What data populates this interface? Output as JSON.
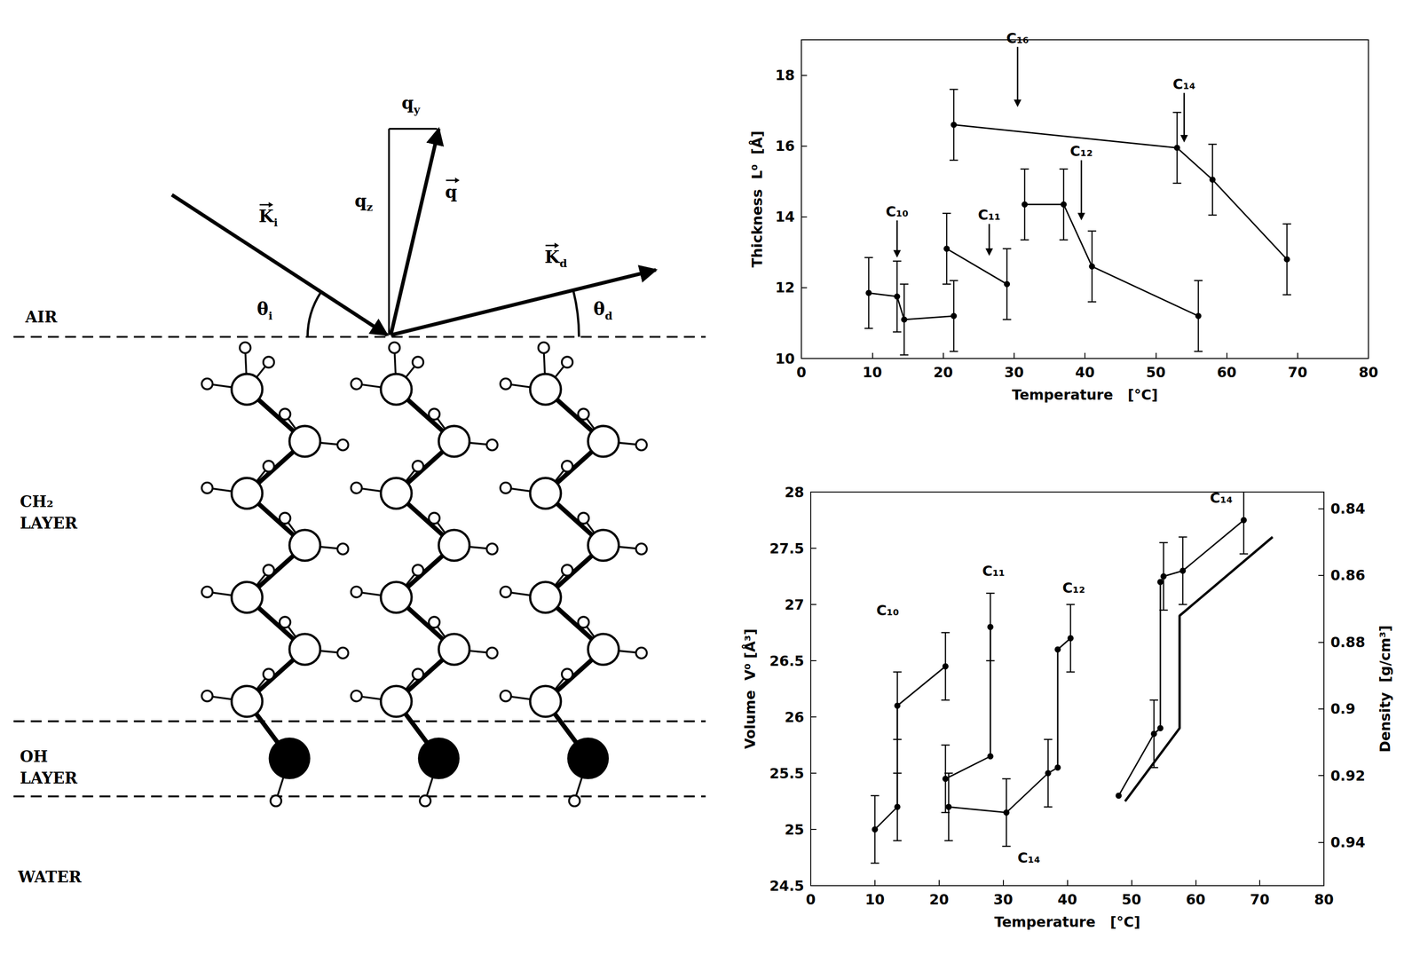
{
  "diagram": {
    "regions": {
      "air": "AIR",
      "ch2": "CH₂ LAYER",
      "oh": "OH LAYER",
      "water": "WATER"
    },
    "vectors": {
      "k_i": {
        "base": "K",
        "sub": "i"
      },
      "k_d": {
        "base": "K",
        "sub": "d"
      },
      "q": {
        "base": "q"
      },
      "q_z": {
        "base": "q",
        "sub": "z"
      },
      "q_y": {
        "base": "q",
        "sub": "y"
      }
    },
    "angles": {
      "theta_i": {
        "base": "θ",
        "sub": "i"
      },
      "theta_d": {
        "base": "θ",
        "sub": "d"
      }
    }
  },
  "chart_data": [
    {
      "type": "line",
      "x_label": "Temperature   [°C]",
      "y_label": "Thickness  L⁰  [Å]",
      "xlim": [
        0,
        80
      ],
      "xticks": [
        0,
        10,
        20,
        30,
        40,
        50,
        60,
        70,
        80
      ],
      "ylim": [
        10,
        19
      ],
      "yticks": [
        10,
        12,
        14,
        16,
        18
      ],
      "grid": false,
      "color": "#000000",
      "marker": "circle",
      "series": [
        {
          "x": [
            21.5,
            53,
            58,
            68.5
          ],
          "values": [
            16.6,
            15.95,
            15.05,
            12.8
          ],
          "errors": [
            1.0,
            1.0,
            1.0,
            1.0
          ]
        },
        {
          "x": [
            20.5,
            29
          ],
          "values": [
            13.1,
            12.1
          ],
          "errors": [
            1.0,
            1.0
          ]
        },
        {
          "x": [
            31.5,
            37,
            41,
            56
          ],
          "values": [
            14.35,
            14.35,
            12.6,
            11.2
          ],
          "errors": [
            1.0,
            1.0,
            1.0,
            1.0
          ]
        },
        {
          "x": [
            9.5,
            13.5,
            14.5,
            21.5
          ],
          "values": [
            11.85,
            11.75,
            11.1,
            11.2
          ],
          "errors": [
            1.0,
            1.0,
            1.0,
            1.0
          ]
        }
      ],
      "annotations": [
        {
          "text": "C₁₀",
          "x": 13.5,
          "y": 13.9,
          "y_end": 12.85
        },
        {
          "text": "C₁₁",
          "x": 26.5,
          "y": 13.8,
          "y_end": 12.9
        },
        {
          "text": "C₁₂",
          "x": 39.5,
          "y": 15.6,
          "y_end": 13.9
        },
        {
          "text": "C₁₄",
          "x": 54,
          "y": 17.5,
          "y_end": 16.1
        },
        {
          "text": "C₁₆",
          "x": 30.5,
          "y": 18.8,
          "y_end": 17.1
        }
      ]
    },
    {
      "type": "line",
      "x_label": "Temperature   [°C]",
      "y_label": "Volume  V⁰ [Å³]",
      "y2_label": "Density  [g/cm³]",
      "xlim": [
        0,
        80
      ],
      "xticks": [
        0,
        10,
        20,
        30,
        40,
        50,
        60,
        70,
        80
      ],
      "ylim": [
        24.5,
        28
      ],
      "yticks": [
        24.5,
        25,
        25.5,
        26,
        26.5,
        27,
        27.5,
        28
      ],
      "y2lim": [
        0.953,
        0.835
      ],
      "y2ticks": [
        0.84,
        0.86,
        0.88,
        0.9,
        0.92,
        0.94
      ],
      "grid": false,
      "color": "#000000",
      "marker": "circle",
      "series": [
        {
          "x": [
            10,
            13.5,
            13.5,
            21
          ],
          "values": [
            25.0,
            25.2,
            26.1,
            26.45
          ],
          "errors": [
            0.3,
            0.3,
            0.3,
            0.3
          ]
        },
        {
          "x": [
            21,
            28,
            28
          ],
          "values": [
            25.45,
            25.65,
            26.8
          ],
          "errors": [
            0.3,
            null,
            0.3
          ]
        },
        {
          "x": [
            21.5,
            30.5,
            37,
            38.5,
            38.5,
            40.5
          ],
          "values": [
            25.2,
            25.15,
            25.5,
            25.55,
            26.6,
            26.7
          ],
          "errors": [
            0.3,
            0.3,
            0.3,
            null,
            null,
            0.3
          ]
        },
        {
          "x": [
            48,
            53.5,
            54.5,
            54.5,
            55,
            58,
            67.5
          ],
          "values": [
            25.3,
            25.85,
            25.9,
            27.2,
            27.25,
            27.3,
            27.75
          ],
          "errors": [
            null,
            0.3,
            null,
            null,
            0.3,
            0.3,
            0.3
          ]
        },
        {
          "x": [
            49,
            57.5,
            57.5,
            72
          ],
          "values": [
            25.25,
            25.9,
            26.9,
            27.6
          ],
          "marker": "none"
        }
      ],
      "annotations": [
        {
          "text": "C₁₀",
          "x": 12,
          "y": 26.95
        },
        {
          "text": "C₁₁",
          "x": 28.5,
          "y": 27.3
        },
        {
          "text": "C₁₂",
          "x": 41,
          "y": 27.15
        },
        {
          "text": "C₁₄",
          "x": 64,
          "y": 27.95
        },
        {
          "text": "C₁₄",
          "x": 34,
          "y": 24.75
        }
      ]
    }
  ]
}
